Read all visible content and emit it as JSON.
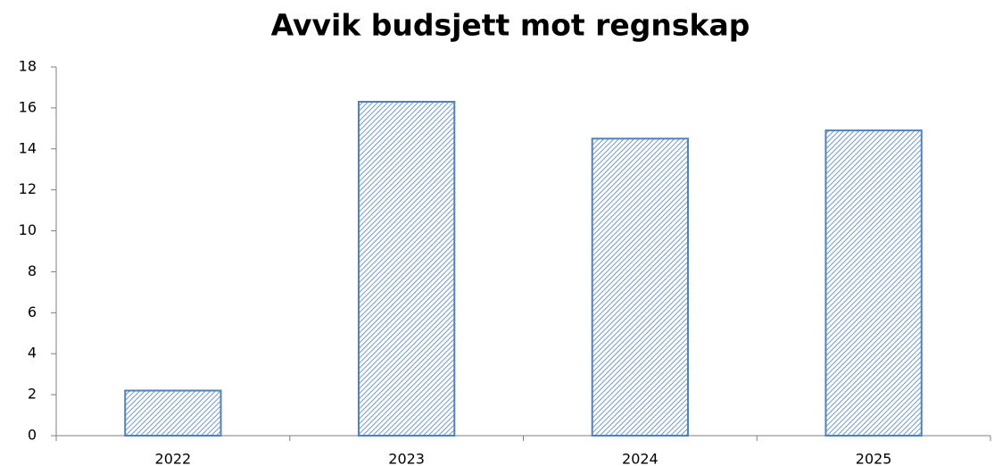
{
  "chart_data": {
    "type": "bar",
    "title": "Avvik budsjett mot regnskap",
    "categories": [
      "2022",
      "2023",
      "2024",
      "2025"
    ],
    "values": [
      2.2,
      16.3,
      14.5,
      14.9
    ],
    "color": "#4f81bd",
    "ylim": [
      0,
      18
    ],
    "yticks": [
      0,
      2,
      4,
      6,
      8,
      10,
      12,
      14,
      16,
      18
    ],
    "grid": false
  }
}
